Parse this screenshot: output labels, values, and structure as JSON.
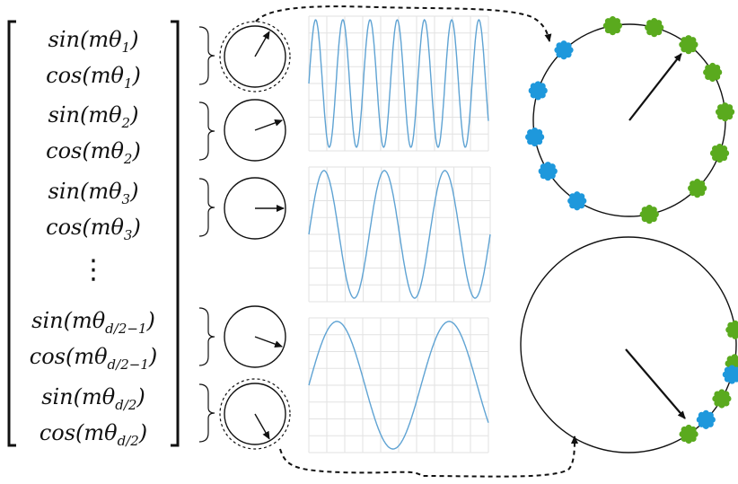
{
  "vector_entries": [
    {
      "fn": "sin",
      "arg": "mθ",
      "sub": "1"
    },
    {
      "fn": "cos",
      "arg": "mθ",
      "sub": "1"
    },
    {
      "fn": "sin",
      "arg": "mθ",
      "sub": "2"
    },
    {
      "fn": "cos",
      "arg": "mθ",
      "sub": "2"
    },
    {
      "fn": "sin",
      "arg": "mθ",
      "sub": "3"
    },
    {
      "fn": "cos",
      "arg": "mθ",
      "sub": "3"
    },
    {
      "fn": "sin",
      "arg": "mθ",
      "sub": "d/2−1"
    },
    {
      "fn": "cos",
      "arg": "mθ",
      "sub": "d/2−1"
    },
    {
      "fn": "sin",
      "arg": "mθ",
      "sub": "d/2"
    },
    {
      "fn": "cos",
      "arg": "mθ",
      "sub": "d/2"
    }
  ],
  "ellipsis": "⋮",
  "rotation_dials": [
    {
      "pair": "1",
      "angle_deg": 60,
      "highlighted": true
    },
    {
      "pair": "2",
      "angle_deg": 20,
      "highlighted": false
    },
    {
      "pair": "3",
      "angle_deg": 0,
      "highlighted": false
    },
    {
      "pair": "d/2−1",
      "angle_deg": -20,
      "highlighted": false
    },
    {
      "pair": "d/2",
      "angle_deg": -60,
      "highlighted": true
    }
  ],
  "wave_panels": [
    {
      "cycles": 6.6,
      "phase_deg": 0
    },
    {
      "cycles": 3.0,
      "phase_deg": 0
    },
    {
      "cycles": 1.6,
      "phase_deg": 0
    }
  ],
  "colors": {
    "wave": "#5fa3d3",
    "grid": "#e2e2e2",
    "green_marker": "#5aaa1e",
    "blue_marker": "#1e98dc",
    "ink": "#111111"
  },
  "big_circles": [
    {
      "role": "high-frequency",
      "green_markers": 8,
      "blue_markers": 5
    },
    {
      "role": "low-frequency",
      "green_markers": 4,
      "blue_markers": 2
    }
  ]
}
